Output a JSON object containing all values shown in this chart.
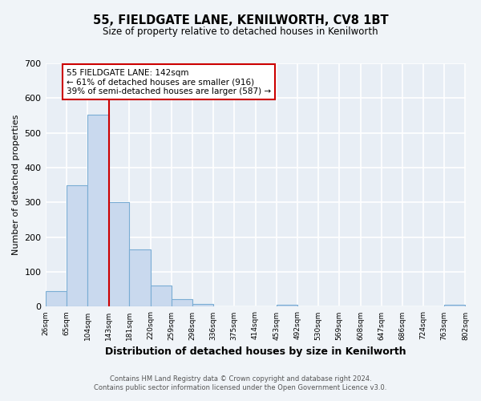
{
  "title": "55, FIELDGATE LANE, KENILWORTH, CV8 1BT",
  "subtitle": "Size of property relative to detached houses in Kenilworth",
  "xlabel": "Distribution of detached houses by size in Kenilworth",
  "ylabel": "Number of detached properties",
  "bin_edges": [
    26,
    65,
    104,
    143,
    181,
    220,
    259,
    298,
    336,
    375,
    414,
    453,
    492,
    530,
    569,
    608,
    647,
    686,
    724,
    763,
    802
  ],
  "bar_heights": [
    45,
    350,
    553,
    300,
    165,
    60,
    22,
    8,
    0,
    0,
    0,
    5,
    0,
    0,
    0,
    0,
    0,
    0,
    0,
    5
  ],
  "bar_color": "#c9d9ee",
  "bar_edge_color": "#7aadd4",
  "vline_x": 143,
  "vline_color": "#cc0000",
  "ylim": [
    0,
    700
  ],
  "yticks": [
    0,
    100,
    200,
    300,
    400,
    500,
    600,
    700
  ],
  "annotation_title": "55 FIELDGATE LANE: 142sqm",
  "annotation_line1": "← 61% of detached houses are smaller (916)",
  "annotation_line2": "39% of semi-detached houses are larger (587) →",
  "annotation_box_color": "#ffffff",
  "annotation_box_edge_color": "#cc0000",
  "footer_line1": "Contains HM Land Registry data © Crown copyright and database right 2024.",
  "footer_line2": "Contains public sector information licensed under the Open Government Licence v3.0.",
  "background_color": "#f0f4f8",
  "plot_background_color": "#e8eef5",
  "grid_color": "#ffffff",
  "tick_labels": [
    "26sqm",
    "65sqm",
    "104sqm",
    "143sqm",
    "181sqm",
    "220sqm",
    "259sqm",
    "298sqm",
    "336sqm",
    "375sqm",
    "414sqm",
    "453sqm",
    "492sqm",
    "530sqm",
    "569sqm",
    "608sqm",
    "647sqm",
    "686sqm",
    "724sqm",
    "763sqm",
    "802sqm"
  ]
}
